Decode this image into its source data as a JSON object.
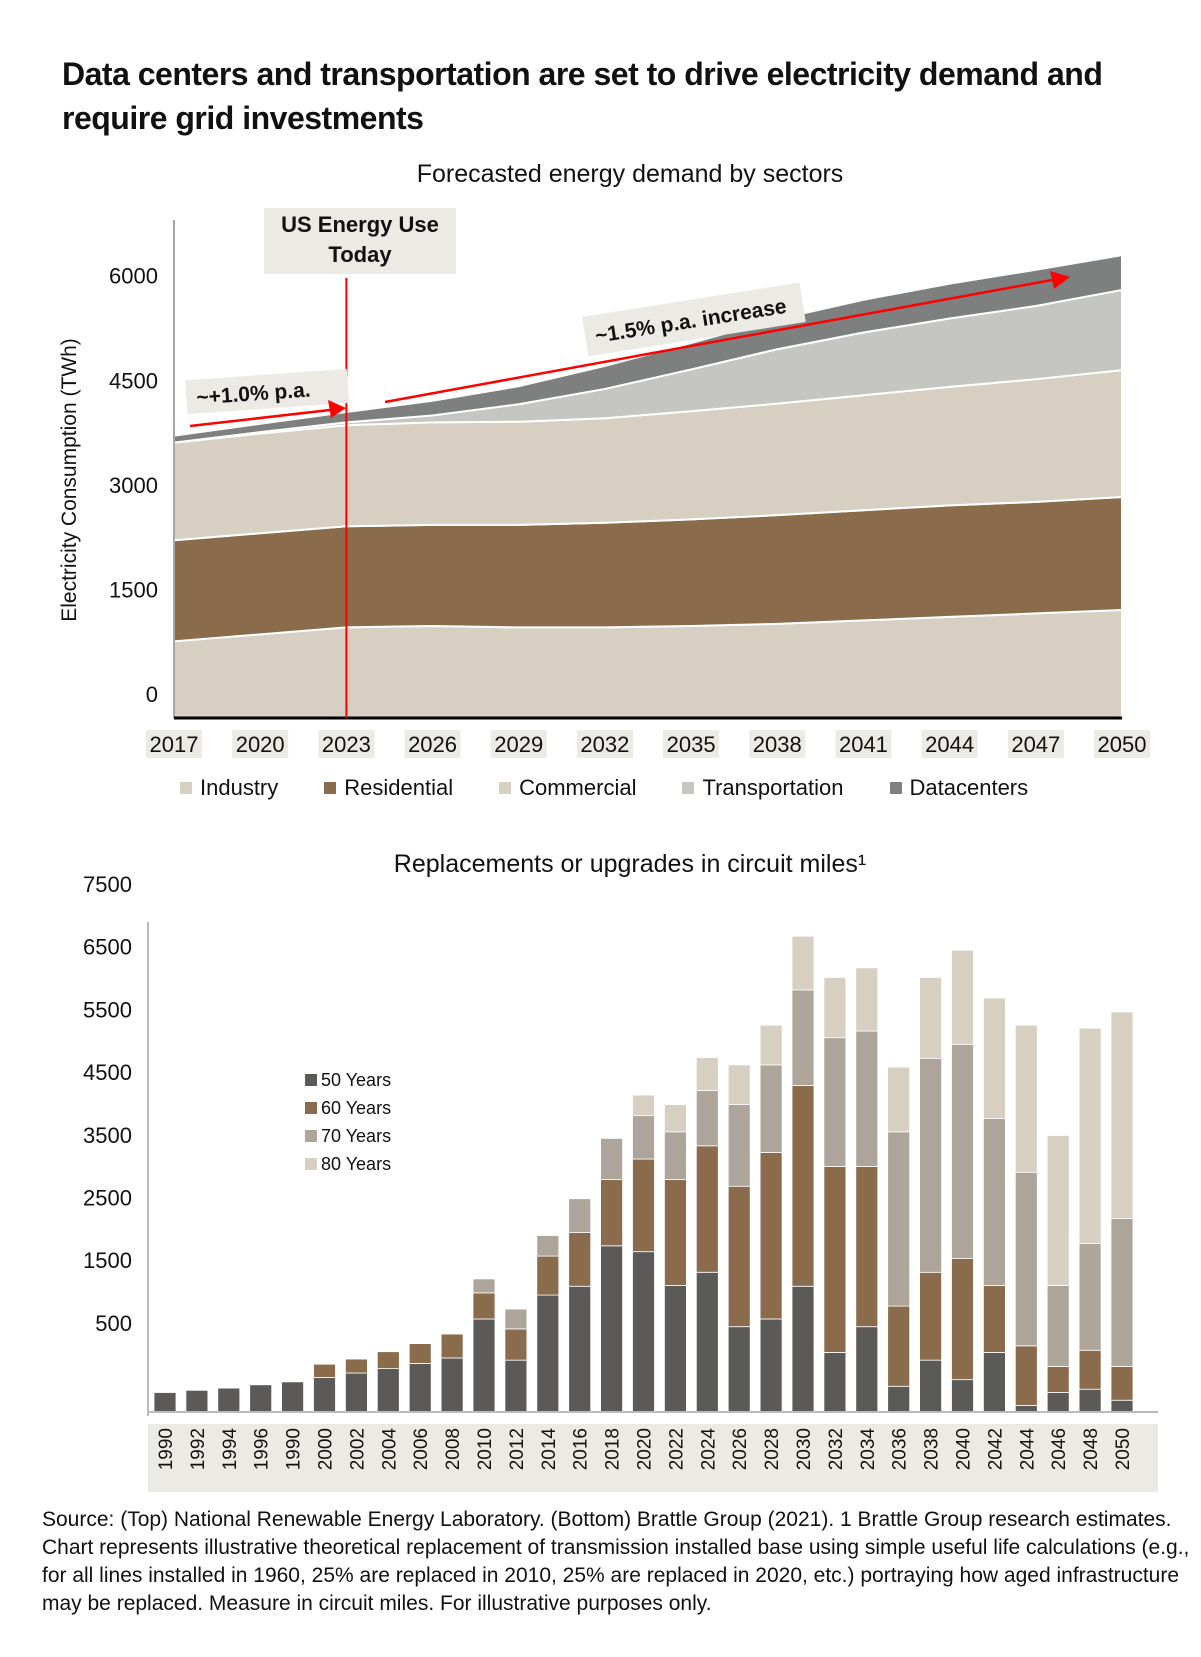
{
  "headline": "Data centers and transportation are set to drive electricity demand and require grid investments",
  "source_note": "Source: (Top) National Renewable Energy Laboratory. (Bottom) Brattle Group (2021). 1 Brattle Group research estimates. Chart represents illustrative theoretical replacement of transmission installed base using simple useful life calculations (e.g., for all lines installed in 1960, 25% are replaced in 2010, 25% are replaced in 2020, etc.) portraying how aged infrastructure may be replaced. Measure in circuit miles.  For illustrative purposes only.",
  "colors": {
    "industry": "#d6cfc2",
    "residential": "#8a6c4d",
    "commercial": "#d6cfc2",
    "transportation": "#c5c6c1",
    "datacenters": "#7e8080",
    "y50": "#5b5a58",
    "y60": "#8a6c4d",
    "y70": "#ada49a",
    "y80": "#d6cfc2",
    "annotation_red": "#ff0000",
    "label_box": "#ebeae5"
  },
  "chart_data": [
    {
      "type": "area",
      "stacked": true,
      "title": "Forecasted energy demand by sectors",
      "xlabel": "",
      "ylabel": "Electricity Consumption (TWh)",
      "ylim": [
        0,
        7000
      ],
      "yticks": [
        0,
        1500,
        3000,
        4500,
        6000
      ],
      "ytick_labels": [
        "0",
        "1500",
        "3000",
        "4500",
        "6000"
      ],
      "x": [
        2017,
        2020,
        2023,
        2026,
        2029,
        2032,
        2035,
        2038,
        2041,
        2044,
        2047,
        2050
      ],
      "xtick_labels": [
        "2017",
        "2020",
        "2023",
        "2026",
        "2029",
        "2032",
        "2035",
        "2038",
        "2041",
        "2044",
        "2047",
        "2050"
      ],
      "series": [
        {
          "name": "Industry",
          "values": [
            1100,
            1200,
            1300,
            1320,
            1300,
            1300,
            1320,
            1350,
            1400,
            1450,
            1500,
            1550
          ]
        },
        {
          "name": "Residential",
          "values": [
            1450,
            1450,
            1450,
            1450,
            1470,
            1500,
            1530,
            1560,
            1580,
            1600,
            1600,
            1620
          ]
        },
        {
          "name": "Commercial",
          "values": [
            1400,
            1430,
            1450,
            1470,
            1480,
            1500,
            1550,
            1600,
            1650,
            1700,
            1760,
            1820
          ]
        },
        {
          "name": "Transportation",
          "values": [
            0,
            20,
            40,
            100,
            250,
            420,
            600,
            780,
            900,
            980,
            1050,
            1150
          ]
        },
        {
          "name": "Datacenters",
          "values": [
            100,
            120,
            150,
            210,
            260,
            330,
            380,
            430,
            470,
            500,
            520,
            500
          ]
        }
      ],
      "legend": [
        "Industry",
        "Residential",
        "Commercial",
        "Transportation",
        "Datacenters"
      ],
      "legend_position": "bottom",
      "grid": false,
      "annotations": {
        "today_label": "US Energy Use Today",
        "today_label_line1": "US Energy Use",
        "today_label_line2": "Today",
        "today_year": 2023,
        "growth_before": "~+1.0% p.a.",
        "growth_after": "~1.5% p.a. increase"
      }
    },
    {
      "type": "bar",
      "stacked": true,
      "title": "Replacements or upgrades in circuit miles¹",
      "xlabel": "",
      "ylabel": "",
      "ylim": [
        0,
        7500
      ],
      "ytick_labels": [
        "7500",
        "6500",
        "5500",
        "4500",
        "3500",
        "2500",
        "1500",
        "500"
      ],
      "categories": [
        "1990",
        "1992",
        "1994",
        "1996",
        "1990",
        "2000",
        "2002",
        "2004",
        "2006",
        "2008",
        "2010",
        "2012",
        "2014",
        "2016",
        "2018",
        "2020",
        "2022",
        "2024",
        "2026",
        "2028",
        "2030",
        "2032",
        "2034",
        "2036",
        "2038",
        "2040",
        "2042",
        "2044",
        "2046",
        "2048",
        "2050"
      ],
      "series": [
        {
          "name": "50 Years",
          "values": [
            265,
            295,
            325,
            370,
            410,
            470,
            530,
            590,
            660,
            735,
            1265,
            705,
            1590,
            1710,
            2260,
            2180,
            1720,
            1900,
            1160,
            1265,
            1710,
            810,
            1160,
            350,
            705,
            440,
            810,
            90,
            265,
            310,
            160
          ]
        },
        {
          "name": "60 Years",
          "values": [
            0,
            0,
            0,
            0,
            0,
            180,
            190,
            230,
            270,
            325,
            355,
            425,
            530,
            730,
            900,
            1260,
            1440,
            1720,
            1910,
            2265,
            2730,
            2530,
            2180,
            1090,
            1195,
            1650,
            910,
            810,
            355,
            530,
            460
          ]
        },
        {
          "name": "70 Years",
          "values": [
            0,
            0,
            0,
            0,
            0,
            0,
            0,
            0,
            0,
            0,
            190,
            270,
            280,
            460,
            560,
            590,
            650,
            750,
            1110,
            1190,
            1300,
            1750,
            1840,
            2370,
            2910,
            2910,
            2270,
            2360,
            1100,
            1450,
            2010
          ]
        },
        {
          "name": "80 Years",
          "values": [
            0,
            0,
            0,
            0,
            0,
            0,
            0,
            0,
            0,
            0,
            0,
            0,
            0,
            0,
            0,
            280,
            370,
            450,
            540,
            540,
            730,
            820,
            860,
            880,
            1100,
            1280,
            1640,
            2000,
            2040,
            2930,
            2810
          ]
        }
      ],
      "legend": [
        "50 Years",
        "60 Years",
        "70 Years",
        "80 Years"
      ],
      "legend_position": "top-left",
      "grid": false
    }
  ]
}
